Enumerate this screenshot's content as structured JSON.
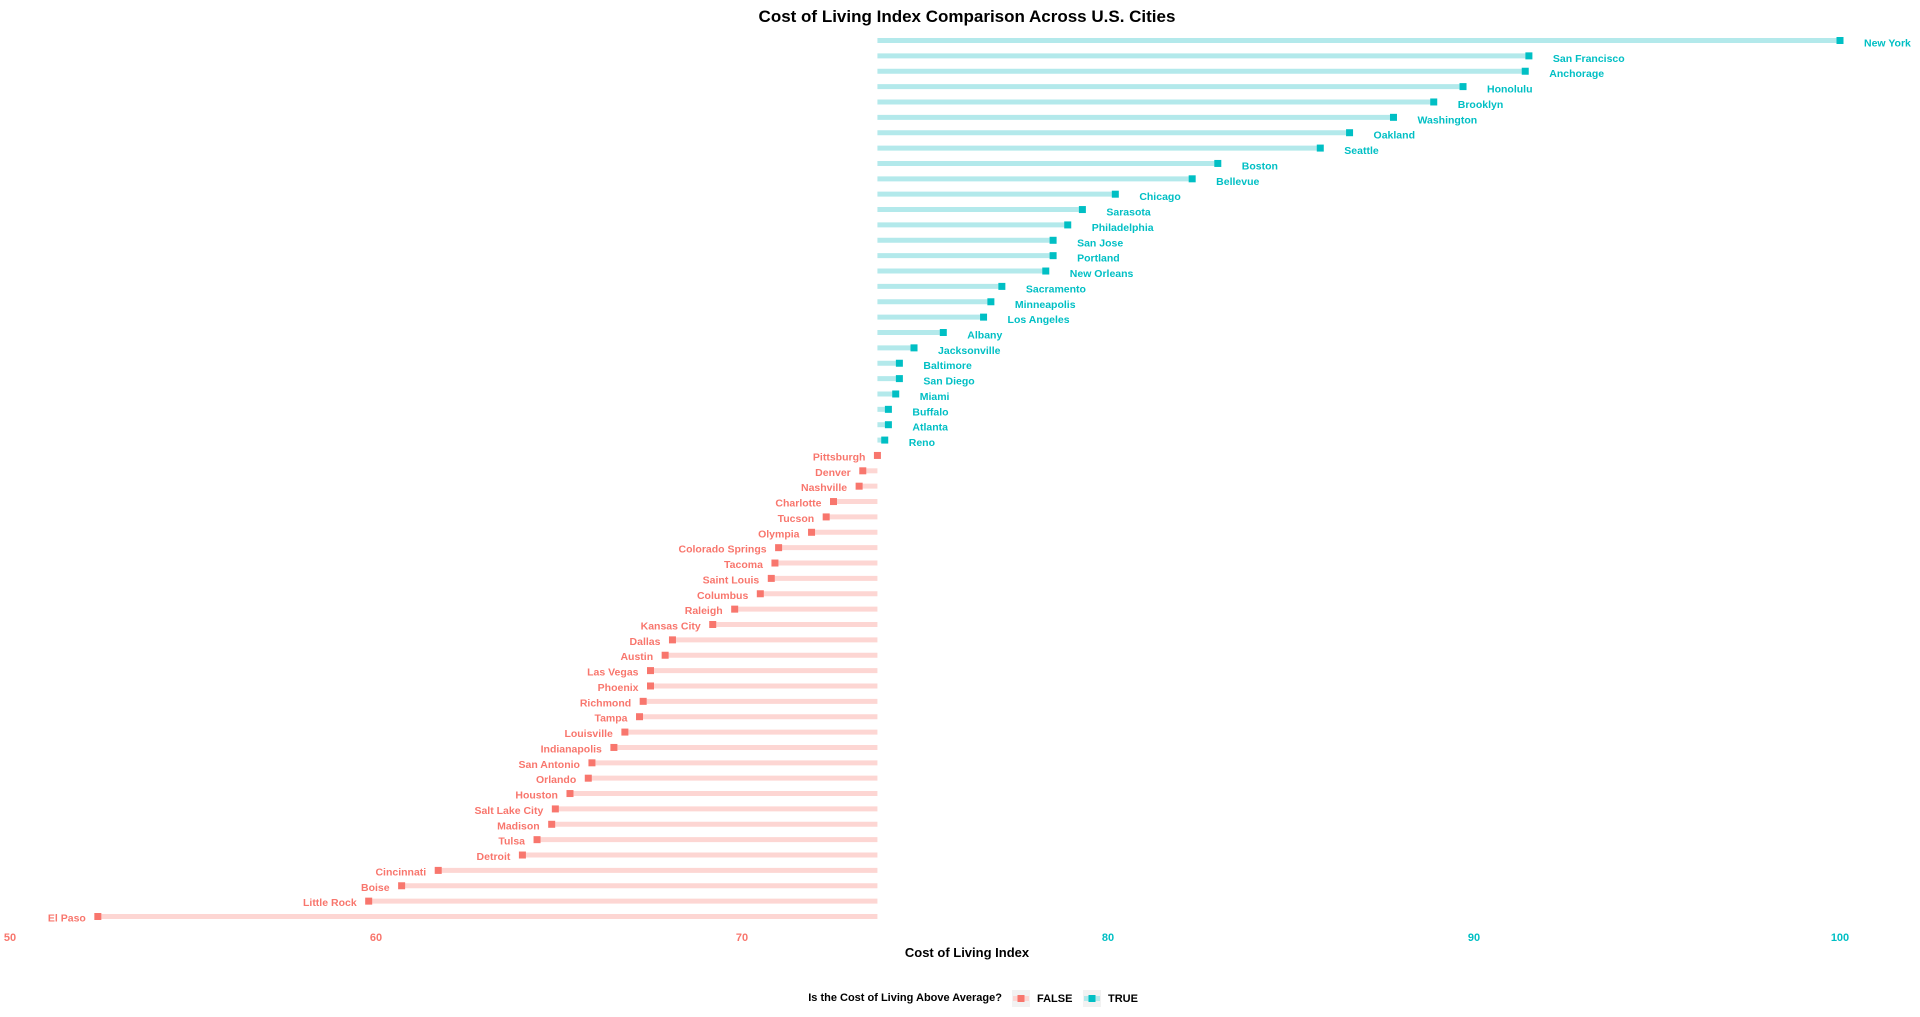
{
  "chart_data": {
    "type": "lollipop",
    "title": "Cost of Living Index Comparison Across U.S. Cities",
    "xlabel": "Cost of Living Index",
    "ylabel": "",
    "xlim": [
      50,
      102
    ],
    "xticks": [
      50,
      60,
      70,
      80,
      90,
      100
    ],
    "average": 73.7,
    "grid": false,
    "colors": {
      "above": "#00bfc4",
      "below": "#f8766d",
      "above_seg": "#b3e9eb",
      "below_seg": "#fdd6d3"
    },
    "legend": {
      "title": "Is the Cost of Living Above Average?",
      "position": "bottom",
      "items": [
        "FALSE",
        "TRUE"
      ]
    },
    "points": [
      {
        "city": "New York",
        "value": 100.0
      },
      {
        "city": "San Francisco",
        "value": 91.5
      },
      {
        "city": "Anchorage",
        "value": 91.4
      },
      {
        "city": "Honolulu",
        "value": 89.7
      },
      {
        "city": "Brooklyn",
        "value": 88.9
      },
      {
        "city": "Washington",
        "value": 87.8
      },
      {
        "city": "Oakland",
        "value": 86.6
      },
      {
        "city": "Seattle",
        "value": 85.8
      },
      {
        "city": "Boston",
        "value": 83.0
      },
      {
        "city": "Bellevue",
        "value": 82.3
      },
      {
        "city": "Chicago",
        "value": 80.2
      },
      {
        "city": "Sarasota",
        "value": 79.3
      },
      {
        "city": "Philadelphia",
        "value": 78.9
      },
      {
        "city": "San Jose",
        "value": 78.5
      },
      {
        "city": "Portland",
        "value": 78.5
      },
      {
        "city": "New Orleans",
        "value": 78.3
      },
      {
        "city": "Sacramento",
        "value": 77.1
      },
      {
        "city": "Minneapolis",
        "value": 76.8
      },
      {
        "city": "Los Angeles",
        "value": 76.6
      },
      {
        "city": "Albany",
        "value": 75.5
      },
      {
        "city": "Jacksonville",
        "value": 74.7
      },
      {
        "city": "Baltimore",
        "value": 74.3
      },
      {
        "city": "San Diego",
        "value": 74.3
      },
      {
        "city": "Miami",
        "value": 74.2
      },
      {
        "city": "Buffalo",
        "value": 74.0
      },
      {
        "city": "Atlanta",
        "value": 74.0
      },
      {
        "city": "Reno",
        "value": 73.9
      },
      {
        "city": "Pittsburgh",
        "value": 73.7
      },
      {
        "city": "Denver",
        "value": 73.3
      },
      {
        "city": "Nashville",
        "value": 73.2
      },
      {
        "city": "Charlotte",
        "value": 72.5
      },
      {
        "city": "Tucson",
        "value": 72.3
      },
      {
        "city": "Olympia",
        "value": 71.9
      },
      {
        "city": "Colorado Springs",
        "value": 71.0
      },
      {
        "city": "Tacoma",
        "value": 70.9
      },
      {
        "city": "Saint Louis",
        "value": 70.8
      },
      {
        "city": "Columbus",
        "value": 70.5
      },
      {
        "city": "Raleigh",
        "value": 69.8
      },
      {
        "city": "Kansas City",
        "value": 69.2
      },
      {
        "city": "Dallas",
        "value": 68.1
      },
      {
        "city": "Austin",
        "value": 67.9
      },
      {
        "city": "Las Vegas",
        "value": 67.5
      },
      {
        "city": "Phoenix",
        "value": 67.5
      },
      {
        "city": "Richmond",
        "value": 67.3
      },
      {
        "city": "Tampa",
        "value": 67.2
      },
      {
        "city": "Louisville",
        "value": 66.8
      },
      {
        "city": "Indianapolis",
        "value": 66.5
      },
      {
        "city": "San Antonio",
        "value": 65.9
      },
      {
        "city": "Orlando",
        "value": 65.8
      },
      {
        "city": "Houston",
        "value": 65.3
      },
      {
        "city": "Salt Lake City",
        "value": 64.9
      },
      {
        "city": "Madison",
        "value": 64.8
      },
      {
        "city": "Tulsa",
        "value": 64.4
      },
      {
        "city": "Detroit",
        "value": 64.0
      },
      {
        "city": "Cincinnati",
        "value": 61.7
      },
      {
        "city": "Boise",
        "value": 60.7
      },
      {
        "city": "Little Rock",
        "value": 59.8
      },
      {
        "city": "El Paso",
        "value": 52.4
      }
    ]
  }
}
